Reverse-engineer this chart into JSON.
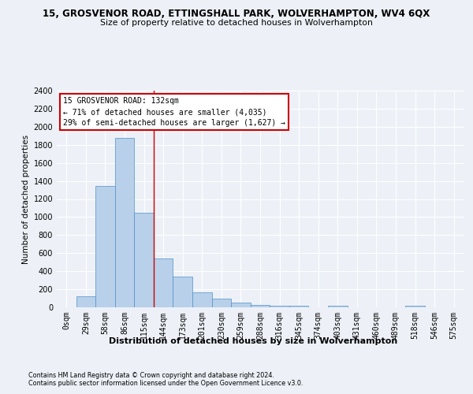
{
  "title": "15, GROSVENOR ROAD, ETTINGSHALL PARK, WOLVERHAMPTON, WV4 6QX",
  "subtitle": "Size of property relative to detached houses in Wolverhampton",
  "xlabel": "Distribution of detached houses by size in Wolverhampton",
  "ylabel": "Number of detached properties",
  "footer1": "Contains HM Land Registry data © Crown copyright and database right 2024.",
  "footer2": "Contains public sector information licensed under the Open Government Licence v3.0.",
  "annotation_line1": "15 GROSVENOR ROAD: 132sqm",
  "annotation_line2": "← 71% of detached houses are smaller (4,035)",
  "annotation_line3": "29% of semi-detached houses are larger (1,627) →",
  "bar_color": "#b8d0ea",
  "bar_edge_color": "#5090c8",
  "vline_color": "#cc0000",
  "vline_x": 4.5,
  "ylim": [
    0,
    2400
  ],
  "yticks": [
    0,
    200,
    400,
    600,
    800,
    1000,
    1200,
    1400,
    1600,
    1800,
    2000,
    2200,
    2400
  ],
  "categories": [
    "0sqm",
    "29sqm",
    "58sqm",
    "86sqm",
    "115sqm",
    "144sqm",
    "173sqm",
    "201sqm",
    "230sqm",
    "259sqm",
    "288sqm",
    "316sqm",
    "345sqm",
    "374sqm",
    "403sqm",
    "431sqm",
    "460sqm",
    "489sqm",
    "518sqm",
    "546sqm",
    "575sqm"
  ],
  "values": [
    3,
    125,
    1340,
    1880,
    1050,
    540,
    340,
    165,
    100,
    50,
    30,
    20,
    20,
    2,
    20,
    2,
    2,
    2,
    20,
    2,
    2
  ],
  "background_color": "#edf1f7",
  "grid_color": "#ffffff",
  "box_edge_color": "#cc0000",
  "title_fontsize": 8.5,
  "subtitle_fontsize": 7.8,
  "ylabel_fontsize": 7.5,
  "xlabel_fontsize": 8.0,
  "tick_fontsize": 7.0,
  "ann_fontsize": 7.0,
  "footer_fontsize": 5.8
}
